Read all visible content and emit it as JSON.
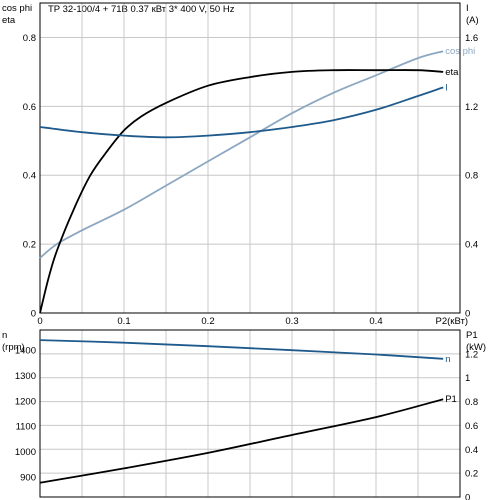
{
  "chart_data": [
    {
      "type": "line",
      "title": "TP 32-100/4 + 71B    0.37 кВт   3* 400 V, 50 Hz",
      "xlabel": "P2(кВт)",
      "xlim": [
        0,
        0.5
      ],
      "x_ticks": [
        0,
        0.1,
        0.2,
        0.3,
        0.4
      ],
      "ylabel_left": [
        "cos phi",
        "eta"
      ],
      "ylim_left": [
        0,
        0.9
      ],
      "y_ticks_left": [
        0,
        0.2,
        0.4,
        0.6,
        0.8
      ],
      "ylabel_right": [
        "I",
        "(A)"
      ],
      "ylim_right": [
        0,
        1.8
      ],
      "y_ticks_right": [
        0,
        0.4,
        0.8,
        1.2,
        1.6
      ],
      "grid": true,
      "series": [
        {
          "name": "cos phi",
          "axis": "left",
          "color": "#8ca7c2",
          "x": [
            0,
            0.02,
            0.05,
            0.1,
            0.15,
            0.2,
            0.25,
            0.3,
            0.35,
            0.4,
            0.45,
            0.48
          ],
          "y": [
            0.16,
            0.2,
            0.24,
            0.3,
            0.37,
            0.44,
            0.51,
            0.58,
            0.64,
            0.69,
            0.74,
            0.76
          ]
        },
        {
          "name": "eta",
          "axis": "left",
          "color": "#000000",
          "x": [
            0,
            0.01,
            0.02,
            0.04,
            0.06,
            0.08,
            0.1,
            0.12,
            0.15,
            0.2,
            0.25,
            0.3,
            0.35,
            0.4,
            0.45,
            0.48
          ],
          "y": [
            0,
            0.1,
            0.18,
            0.3,
            0.4,
            0.47,
            0.53,
            0.57,
            0.61,
            0.66,
            0.685,
            0.7,
            0.705,
            0.705,
            0.705,
            0.7
          ]
        },
        {
          "name": "I",
          "axis": "right",
          "color": "#1f5a8c",
          "x": [
            0,
            0.05,
            0.1,
            0.15,
            0.2,
            0.25,
            0.3,
            0.35,
            0.4,
            0.45,
            0.48
          ],
          "y": [
            1.08,
            1.05,
            1.03,
            1.02,
            1.03,
            1.05,
            1.08,
            1.12,
            1.18,
            1.26,
            1.31
          ]
        }
      ]
    },
    {
      "type": "line",
      "xlim": [
        0,
        0.5
      ],
      "ylabel_left": [
        "n",
        "(rpm)"
      ],
      "ylim_left": [
        820,
        1480
      ],
      "y_ticks_left": [
        900,
        1000,
        1100,
        1200,
        1300,
        1400
      ],
      "ylabel_right": [
        "P1",
        "(kW)"
      ],
      "ylim_right": [
        0,
        1.4
      ],
      "y_ticks_right": [
        0,
        0.2,
        0.4,
        0.6,
        0.8,
        1,
        1.2
      ],
      "grid": true,
      "series": [
        {
          "name": "n",
          "axis": "left",
          "color": "#1f5a8c",
          "x": [
            0,
            0.1,
            0.2,
            0.3,
            0.4,
            0.48
          ],
          "y": [
            1440,
            1430,
            1416,
            1400,
            1383,
            1366
          ]
        },
        {
          "name": "P1",
          "axis": "right",
          "color": "#000000",
          "x": [
            0,
            0.1,
            0.2,
            0.3,
            0.4,
            0.48
          ],
          "y": [
            0.12,
            0.24,
            0.37,
            0.52,
            0.67,
            0.82
          ]
        }
      ]
    }
  ]
}
